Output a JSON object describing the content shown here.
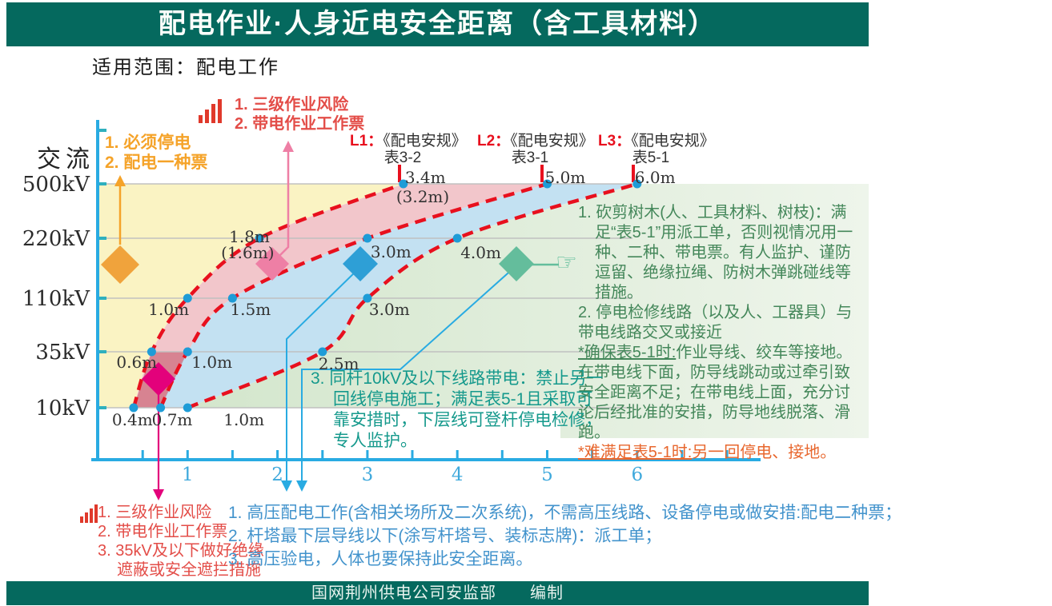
{
  "header": {
    "title": "配电作业·人身近电安全距离（含工具材料）"
  },
  "subtitle": "适用范围：配电工作",
  "footer": {
    "text": "国网荆州供电公司安监部　　编制"
  },
  "icons": {
    "pointing_hand": "☞",
    "risk_level": "bar-chart"
  },
  "colors": {
    "header_green": "#05695E",
    "axis_blue": "#29ABE2",
    "curve_red": "#E8101E",
    "dot_blue": "#1E9CD7",
    "region_must_cut_power": "#FAF3C3",
    "region_live_work": "#F2C6CB",
    "region_high_risk": "#C4566A",
    "region_caution": "#C3E1F2",
    "region_allowed": "#D3E6CC",
    "marker_orange": "#F0A33C",
    "marker_pink": "#EE7FA5",
    "marker_magenta": "#E3017B",
    "marker_blue": "#2E9FD6",
    "marker_teal": "#64BD9C"
  },
  "chart_data": {
    "type": "line",
    "x_axis": {
      "unit": "m",
      "ticks": [
        1,
        2,
        3,
        4,
        5,
        6
      ],
      "range": [
        0,
        7.3
      ]
    },
    "y_axis": {
      "label": "交流",
      "categories": [
        "10kV",
        "35kV",
        "110kV",
        "220kV",
        "500kV"
      ]
    },
    "series": [
      {
        "name": "L1",
        "reference": "《配电安规》表3-2",
        "values_m": [
          0.4,
          0.6,
          1.0,
          1.8,
          3.4
        ],
        "point_labels": [
          "0.4m",
          "0.6m",
          "1.0m",
          "1.8m",
          "3.4m"
        ],
        "alt_point_labels": [
          "",
          "",
          "",
          "(1.6m)",
          "(3.2m)"
        ]
      },
      {
        "name": "L2",
        "reference": "《配电安规》表3-1",
        "values_m": [
          0.7,
          1.0,
          1.5,
          3.0,
          5.0
        ],
        "point_labels": [
          "0.7m",
          "1.0m",
          "1.5m",
          "3.0m",
          "5.0m"
        ],
        "alt_point_labels": [
          "",
          "",
          "",
          "",
          ""
        ]
      },
      {
        "name": "L3",
        "reference": "《配电安规》表5-1",
        "values_m": [
          1.0,
          2.5,
          3.0,
          4.0,
          6.0
        ],
        "point_labels": [
          "1.0m",
          "2.5m",
          "3.0m",
          "4.0m",
          "6.0m"
        ],
        "alt_point_labels": [
          "",
          "",
          "",
          "",
          ""
        ]
      }
    ]
  },
  "curve_labels": [
    {
      "prefix": "L1：",
      "name": "《配电安规》",
      "table": "表3-2"
    },
    {
      "prefix": "L2：",
      "name": "《配电安规》",
      "table": "表3-1"
    },
    {
      "prefix": "L3：",
      "name": "《配电安规》",
      "table": "表5-1"
    }
  ],
  "annotations": {
    "orange_note": {
      "lines": [
        "1. 必须停电",
        "2. 配电一种票"
      ]
    },
    "top_red_note": {
      "lines": [
        "1. 三级作业风险",
        "2. 带电作业工作票"
      ]
    },
    "bottom_red_note": {
      "lines": [
        "1. 三级作业风险",
        "2. 带电作业工作票",
        "3. 35kV及以下做好绝缘",
        "遮蔽或安全遮拦措施"
      ]
    },
    "teal_box": {
      "text": "3. 同杆10kV及以下线路带电：禁止另一回线停电施工；满足表5-1且采取可靠安措时，下层线可登杆停电检修，专人监护。"
    },
    "green_panel": {
      "item1": "1. 砍剪树木(人、工具材料、树枝)：满足“表5-1”用派工单，否则视情况用一种、二种、带电票。有人监护、谨防逗留、绝缘拉绳、防树木弹跳碰线等措施。",
      "item2": "2. 停电检修线路（以及人、工器具）与带电线路交叉或接近",
      "note1_label": "*确保表5-1时:",
      "note1_text": "作业导线、绞车等接地。在带电线下面，防导线跳动或过牵引致安全距离不足；在带电线上面，充分讨论后经批准的安措，防导地线脱落、滑跑。",
      "note2_label": "*难满足表5-1时:",
      "note2_text": "另一回停电、接地。"
    },
    "bottom_blue_note": {
      "lines": [
        "1. 高压配电工作(含相关场所及二次系统)，不需高压线路、设备停电或做安措:配电二种票；",
        "2. 杆塔最下层导线以下(涂写杆塔号、装标志牌)：派工单；",
        "3. 高压验电，人体也要保持此安全距离。"
      ]
    }
  }
}
